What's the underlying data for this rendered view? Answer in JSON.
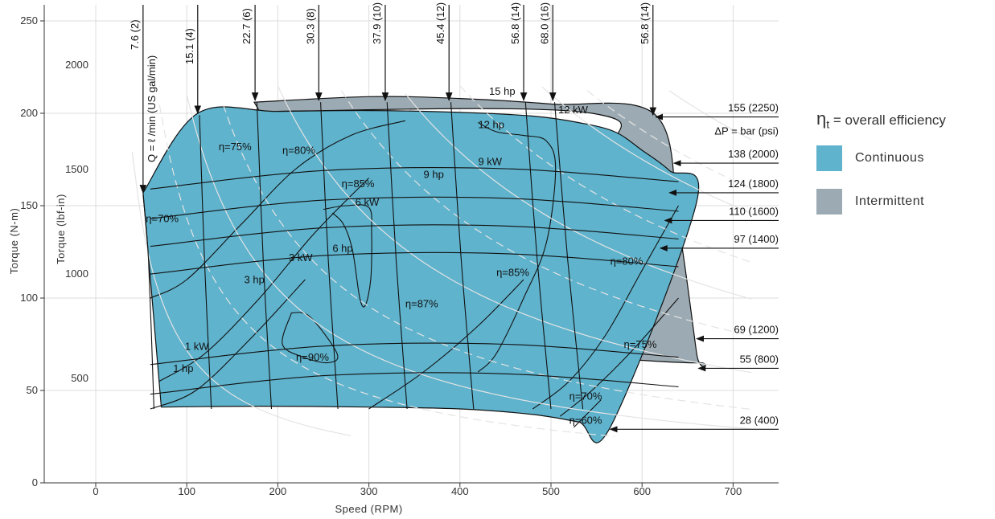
{
  "chart_data": {
    "type": "area",
    "x": {
      "label": "Speed (RPM)",
      "range": [
        -55,
        750
      ],
      "ticks": [
        0,
        100,
        200,
        300,
        400,
        500,
        600,
        700
      ]
    },
    "y_left_nm": {
      "label": "Torque (N-m)",
      "range": [
        0,
        260
      ],
      "ticks": [
        0,
        50,
        100,
        150,
        200,
        250
      ]
    },
    "y_left_lbfin": {
      "label": "Torque (lbf-in)",
      "ticks": [
        500,
        1000,
        1500,
        2000
      ]
    },
    "grid": true,
    "continuous_region": [
      [
        52,
        157
      ],
      [
        112,
        200
      ],
      [
        200,
        201
      ],
      [
        300,
        201.5
      ],
      [
        400,
        200.5
      ],
      [
        480,
        198.5
      ],
      [
        530,
        195
      ],
      [
        570,
        190
      ],
      [
        600,
        180
      ],
      [
        630,
        169
      ],
      [
        660,
        152
      ],
      [
        565,
        30
      ],
      [
        530,
        33
      ],
      [
        480,
        37
      ],
      [
        400,
        40
      ],
      [
        300,
        41
      ],
      [
        180,
        41.5
      ],
      [
        72,
        41
      ]
    ],
    "intermittent_region": [
      [
        174,
        206
      ],
      [
        300,
        209
      ],
      [
        400,
        208
      ],
      [
        500,
        205
      ],
      [
        615,
        199
      ],
      [
        640,
        140
      ],
      [
        660,
        70
      ],
      [
        662,
        65
      ],
      [
        560,
        68
      ],
      [
        552,
        72
      ],
      [
        560,
        170
      ],
      [
        545,
        200
      ],
      [
        180,
        201
      ]
    ],
    "flow_lines": [
      {
        "label": "7.6 (2)",
        "x": 52
      },
      {
        "label": "15.1 (4)",
        "x": 112
      },
      {
        "label": "22.7 (6)",
        "x": 175
      },
      {
        "label": "30.3 (8)",
        "x": 245
      },
      {
        "label": "37.9 (10)",
        "x": 318
      },
      {
        "label": "45.4 (12)",
        "x": 388
      },
      {
        "label": "56.8 (14)",
        "x": 470
      },
      {
        "label": "68.0 (16)",
        "x": 502
      },
      {
        "label": "56.8 (14)",
        "x": 612
      }
    ],
    "flow_axis_label": "Q = ℓ /min (US   gal/min)",
    "pressure_lines": [
      {
        "label": "155  (2250)",
        "torque": 198
      },
      {
        "label": "138  (2000)",
        "torque": 173
      },
      {
        "label": "124  (1800)",
        "torque": 157
      },
      {
        "label": "110  (1600)",
        "torque": 142
      },
      {
        "label": "97  (1400)",
        "torque": 127
      },
      {
        "label": "69  (1200)",
        "torque": 78
      },
      {
        "label": "55  (800)",
        "torque": 62
      },
      {
        "label": "28  (400)",
        "torque": 29
      }
    ],
    "pressure_axis_label": "ΔP  = bar (psi)",
    "power_labels": [
      "1 hp",
      "1 kW",
      "3 hp",
      "3 kW",
      "6 hp",
      "6 kW",
      "9 hp",
      "9 kW",
      "12 hp",
      "12 kW",
      "15 hp"
    ],
    "efficiency_labels": [
      "η=70%",
      "η=75%",
      "η=80%",
      "η=85%",
      "η=87%",
      "η=90%",
      "η=85%",
      "η=80%",
      "η=75%",
      "η=70%",
      "η=60%"
    ],
    "series": [
      {
        "name": "Continuous",
        "color": "#5fb3cd"
      },
      {
        "name": "Intermittent",
        "color": "#9cabb3"
      }
    ]
  },
  "legend": {
    "efficiency_symbol": "η",
    "efficiency_sub": "t",
    "efficiency_text": " = overall efficiency",
    "continuous_label": "Continuous",
    "intermittent_label": "Intermittent",
    "continuous_color": "#5fb3cd",
    "intermittent_color": "#9cabb3"
  }
}
